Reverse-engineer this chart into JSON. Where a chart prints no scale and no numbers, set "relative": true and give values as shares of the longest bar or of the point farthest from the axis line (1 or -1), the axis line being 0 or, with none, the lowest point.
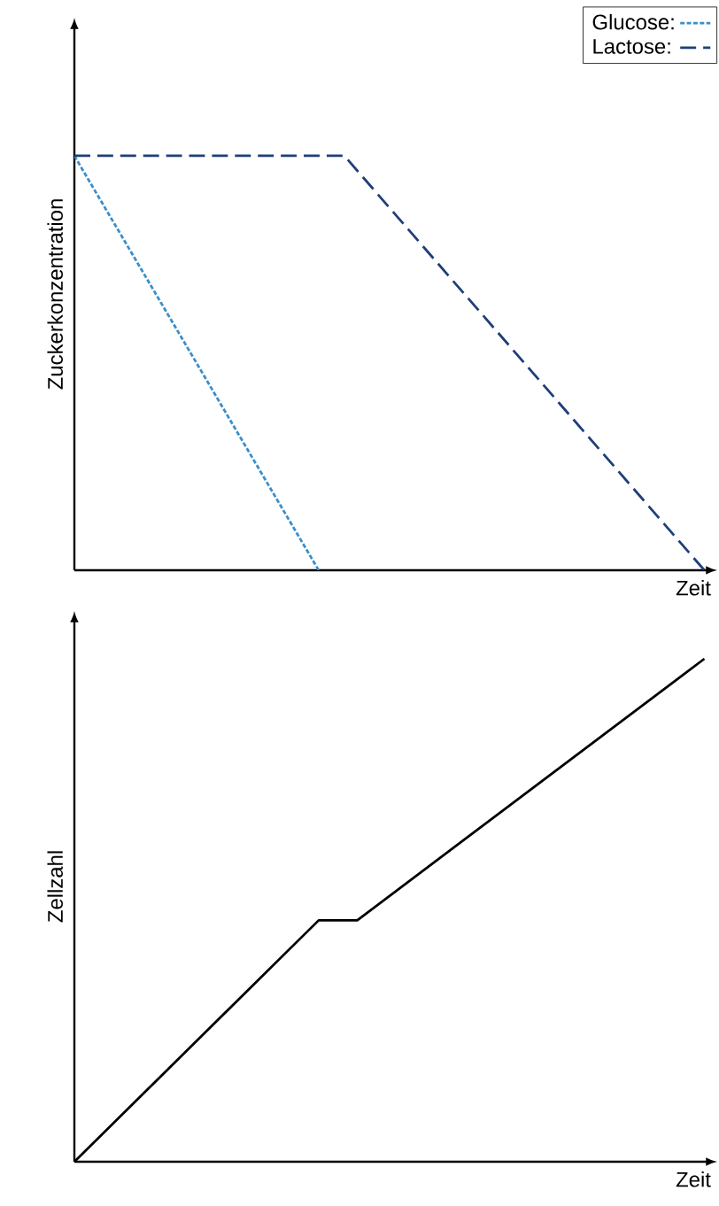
{
  "chart_data": [
    {
      "type": "line",
      "relative": true,
      "xlabel": "Zeit",
      "ylabel": "Zuckerkonzentration",
      "tick_labels": false,
      "legend": "top right",
      "categories": [
        null,
        null,
        null,
        null,
        null,
        null,
        null,
        null,
        null,
        null,
        null,
        null,
        null,
        null,
        null,
        null,
        null,
        null,
        null,
        null,
        null,
        null,
        null,
        null,
        null,
        null,
        null,
        null,
        null,
        null,
        null,
        null,
        null,
        null,
        null,
        null,
        null,
        null,
        null,
        null,
        null,
        null,
        null,
        null,
        null,
        null,
        null,
        null,
        null,
        null
      ],
      "series": [
        {
          "name": "Glucose:",
          "color": "#3a8fc9",
          "line_style": "dotted",
          "values": [
            1,
            null,
            null,
            null,
            null,
            null,
            null,
            null,
            null,
            null,
            null,
            null,
            null,
            null,
            null,
            null,
            null,
            null,
            null,
            0,
            null,
            null,
            null,
            null,
            null,
            null,
            null,
            null,
            null,
            null,
            null,
            null,
            null,
            null,
            null,
            null,
            null,
            null,
            null,
            null,
            null,
            null,
            null,
            null,
            null,
            null,
            null,
            null,
            null,
            null
          ]
        },
        {
          "name": "Lactose:",
          "color": "#1f3f7a",
          "line_style": "dashed",
          "values": [
            1,
            null,
            null,
            null,
            null,
            null,
            null,
            null,
            null,
            null,
            null,
            null,
            null,
            null,
            null,
            null,
            null,
            null,
            null,
            null,
            null,
            1,
            null,
            null,
            null,
            null,
            null,
            null,
            null,
            null,
            null,
            null,
            null,
            null,
            null,
            null,
            null,
            null,
            null,
            null,
            null,
            null,
            null,
            null,
            null,
            null,
            null,
            null,
            null,
            0
          ]
        }
      ]
    },
    {
      "type": "line",
      "relative": true,
      "xlabel": "Zeit",
      "ylabel": "Zellzahl",
      "tick_labels": false,
      "categories": [
        null,
        null,
        null,
        null,
        null,
        null,
        null,
        null,
        null,
        null,
        null,
        null,
        null,
        null,
        null,
        null,
        null,
        null,
        null,
        null,
        null,
        null,
        null,
        null,
        null,
        null,
        null,
        null,
        null,
        null,
        null,
        null,
        null,
        null,
        null,
        null,
        null,
        null,
        null,
        null,
        null,
        null,
        null,
        null,
        null,
        null,
        null,
        null,
        null,
        null
      ],
      "series": [
        {
          "color": "#000000",
          "line_style": "solid",
          "values": [
            0,
            null,
            null,
            null,
            null,
            null,
            null,
            null,
            null,
            null,
            null,
            null,
            null,
            null,
            null,
            null,
            null,
            null,
            null,
            0.48,
            null,
            null,
            0.48,
            null,
            null,
            null,
            null,
            null,
            null,
            null,
            null,
            null,
            null,
            null,
            null,
            null,
            null,
            null,
            null,
            null,
            null,
            null,
            null,
            null,
            null,
            null,
            null,
            null,
            null,
            1
          ]
        }
      ]
    }
  ]
}
